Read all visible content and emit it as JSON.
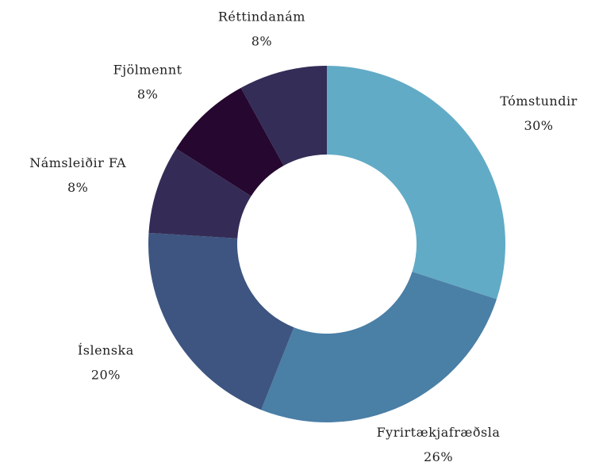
{
  "chart_data": {
    "type": "donut",
    "categories": [
      "Tómstundir",
      "Fyrirtækjafræðsla",
      "Íslenska",
      "Námsleiðir FA",
      "Fjölmennt",
      "Réttindanám"
    ],
    "values": [
      30,
      26,
      20,
      8,
      8,
      8
    ],
    "value_labels": [
      "30%",
      "26%",
      "20%",
      "8%",
      "8%",
      "8%"
    ],
    "colors": [
      "#62abc6",
      "#4a7fa6",
      "#3d5580",
      "#342c57",
      "#25072f",
      "#332d57"
    ]
  }
}
